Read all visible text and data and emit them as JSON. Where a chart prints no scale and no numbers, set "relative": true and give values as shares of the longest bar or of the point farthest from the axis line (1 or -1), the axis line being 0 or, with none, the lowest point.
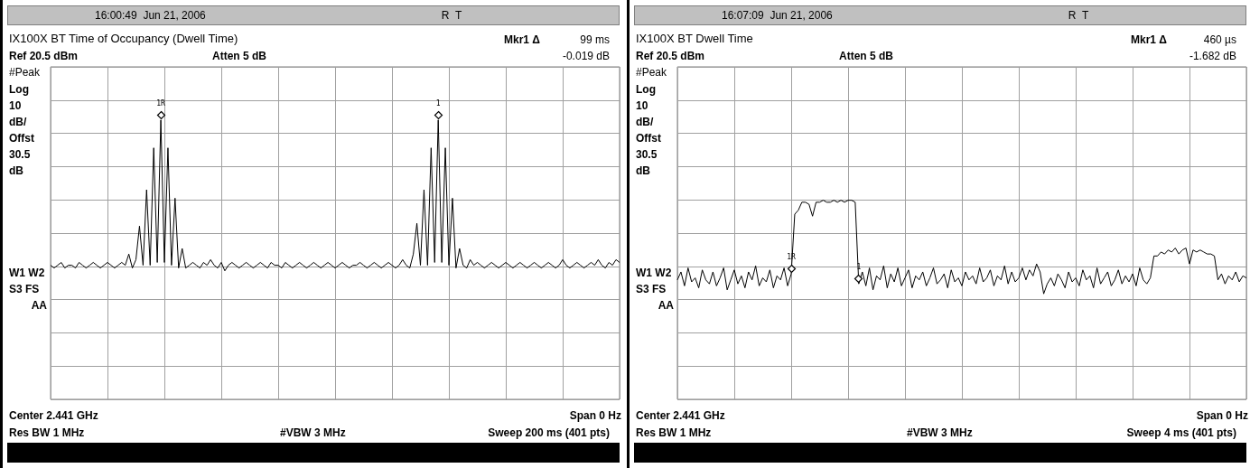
{
  "chart_data": [
    {
      "type": "line",
      "relative": true,
      "grid": true,
      "title": "IX100X BT Time of Occupancy (Dwell Time)",
      "annotations": [
        "16:00:49  Jun 21, 2006",
        "R  T",
        "Mkr1 Δ",
        "99 ms",
        "Ref 20.5 dBm",
        "Atten 5 dB",
        "-0.019 dB",
        "#Peak",
        "Log",
        "10",
        "dB/",
        "Offst",
        "30.5",
        "dB",
        "W1 W2",
        "S3 FS",
        "AA",
        "Center 2.441 GHz",
        "Span 0 Hz",
        "Res BW 1 MHz",
        "#VBW 3 MHz",
        "Sweep 200 ms (401 pts)",
        {
          "text": "1R",
          "y": 1
        },
        {
          "text": "1",
          "y": 1
        }
      ],
      "categories": [
        null,
        null,
        null,
        null,
        null,
        null,
        null,
        null,
        null,
        null,
        null,
        null,
        null,
        null,
        null,
        null,
        null,
        null,
        null,
        null,
        null,
        null,
        null,
        null,
        null,
        null,
        null,
        null,
        null,
        null,
        null,
        null,
        null,
        null,
        null,
        null,
        null,
        null,
        null,
        null,
        null,
        null,
        null,
        null,
        null,
        null,
        null,
        null,
        null,
        null,
        null,
        null,
        null,
        null,
        null,
        null,
        null,
        null,
        null,
        null,
        null,
        null,
        null,
        null,
        null,
        null,
        null,
        null,
        null,
        null,
        null,
        null,
        null,
        null,
        null,
        null,
        null,
        null,
        null,
        null,
        null,
        null,
        null,
        null,
        null,
        null,
        null,
        null,
        null,
        null,
        null,
        null,
        null,
        null,
        null,
        null,
        null,
        null,
        null,
        null,
        null,
        null,
        null,
        null,
        null,
        null,
        null,
        null,
        null,
        null,
        null,
        null,
        null,
        null,
        null,
        null,
        null,
        null,
        null,
        null,
        null,
        null,
        null,
        null,
        null,
        null,
        null,
        null,
        null,
        null,
        null,
        null,
        null,
        null,
        null,
        null,
        null,
        null,
        null,
        null,
        null,
        null,
        null,
        null,
        null,
        null,
        null,
        null,
        null,
        null,
        null,
        null,
        null,
        null,
        null,
        null,
        null,
        null,
        null,
        null,
        null
      ],
      "series": [
        {
          "color": "#000000",
          "values": [
            0.48,
            0.47,
            0.48,
            0.49,
            0.47,
            0.48,
            0.48,
            0.47,
            0.49,
            0.48,
            0.47,
            0.48,
            0.49,
            0.48,
            0.47,
            0.48,
            0.49,
            0.48,
            0.47,
            0.48,
            0.49,
            0.48,
            0.52,
            0.47,
            0.5,
            0.62,
            0.48,
            0.75,
            0.48,
            0.9,
            0.49,
            1,
            0.49,
            0.9,
            0.48,
            0.72,
            0.47,
            0.54,
            0.47,
            0.48,
            0.49,
            0.48,
            0.47,
            0.49,
            0.48,
            0.5,
            0.48,
            0.47,
            0.49,
            0.46,
            0.48,
            0.49,
            0.48,
            0.47,
            0.48,
            0.49,
            0.48,
            0.47,
            0.48,
            0.49,
            0.48,
            0.47,
            0.49,
            0.48,
            0.48,
            0.47,
            0.49,
            0.48,
            0.47,
            0.48,
            0.49,
            0.48,
            0.47,
            0.48,
            0.49,
            0.48,
            0.47,
            0.48,
            0.49,
            0.48,
            0.47,
            0.48,
            0.49,
            0.48,
            0.47,
            0.48,
            0.48,
            0.49,
            0.48,
            0.47,
            0.48,
            0.49,
            0.48,
            0.47,
            0.48,
            0.49,
            0.48,
            0.47,
            0.48,
            0.5,
            0.48,
            0.47,
            0.52,
            0.63,
            0.48,
            0.75,
            0.48,
            0.9,
            0.49,
            1,
            0.49,
            0.9,
            0.48,
            0.72,
            0.47,
            0.54,
            0.48,
            0.47,
            0.5,
            0.48,
            0.49,
            0.48,
            0.47,
            0.48,
            0.49,
            0.48,
            0.47,
            0.48,
            0.49,
            0.48,
            0.47,
            0.48,
            0.49,
            0.48,
            0.47,
            0.48,
            0.49,
            0.48,
            0.47,
            0.48,
            0.49,
            0.48,
            0.47,
            0.48,
            0.5,
            0.48,
            0.47,
            0.48,
            0.49,
            0.48,
            0.47,
            0.48,
            0.49,
            0.48,
            0.5,
            0.48,
            0.47,
            0.49,
            0.48,
            0.5,
            0.49
          ]
        }
      ]
    },
    {
      "type": "line",
      "relative": true,
      "grid": true,
      "title": "IX100X BT Dwell Time",
      "annotations": [
        "16:07:09  Jun 21, 2006",
        "R  T",
        "Mkr1 Δ",
        "460 µs",
        "Ref 20.5 dBm",
        "Atten 5 dB",
        "-1.682 dB",
        "#Peak",
        "Log",
        "10",
        "dB/",
        "Offst",
        "30.5",
        "dB",
        "W1 W2",
        "S3 FS",
        "AA",
        "Center 2.441 GHz",
        "Span 0 Hz",
        "Res BW 1 MHz",
        "#VBW 3 MHz",
        "Sweep 4 ms (401 pts)",
        {
          "text": "1R",
          "y": 0.63
        },
        {
          "text": "1",
          "y": 0.58
        }
      ],
      "categories": [
        null,
        null,
        null,
        null,
        null,
        null,
        null,
        null,
        null,
        null,
        null,
        null,
        null,
        null,
        null,
        null,
        null,
        null,
        null,
        null,
        null,
        null,
        null,
        null,
        null,
        null,
        null,
        null,
        null,
        null,
        null,
        null,
        null,
        null,
        null,
        null,
        null,
        null,
        null,
        null,
        null,
        null,
        null,
        null,
        null,
        null,
        null,
        null,
        null,
        null,
        null,
        null,
        null,
        null,
        null,
        null,
        null,
        null,
        null,
        null,
        null,
        null,
        null,
        null,
        null,
        null,
        null,
        null,
        null,
        null,
        null,
        null,
        null,
        null,
        null,
        null,
        null,
        null,
        null,
        null,
        null,
        null,
        null,
        null,
        null,
        null,
        null,
        null,
        null,
        null,
        null,
        null,
        null,
        null,
        null,
        null,
        null,
        null,
        null,
        null,
        null,
        null,
        null,
        null,
        null,
        null,
        null,
        null,
        null,
        null,
        null,
        null,
        null,
        null,
        null,
        null,
        null,
        null,
        null,
        null,
        null,
        null,
        null,
        null,
        null,
        null,
        null,
        null,
        null,
        null,
        null,
        null,
        null,
        null,
        null,
        null,
        null,
        null,
        null,
        null,
        null,
        null,
        null,
        null,
        null,
        null,
        null,
        null,
        null,
        null,
        null,
        null,
        null,
        null,
        null,
        null,
        null,
        null,
        null,
        null,
        null
      ],
      "series": [
        {
          "color": "#000000",
          "values": [
            0.6,
            0.64,
            0.57,
            0.66,
            0.59,
            0.61,
            0.56,
            0.65,
            0.6,
            0.58,
            0.64,
            0.57,
            0.61,
            0.66,
            0.55,
            0.6,
            0.65,
            0.58,
            0.62,
            0.56,
            0.64,
            0.6,
            0.67,
            0.57,
            0.61,
            0.59,
            0.65,
            0.56,
            0.62,
            0.6,
            0.66,
            0.57,
            0.63,
            0.93,
            0.95,
            0.99,
            0.99,
            0.98,
            0.92,
            0.99,
            0.99,
            1,
            0.99,
            0.99,
            1,
            0.99,
            1,
            0.99,
            1,
            1,
            0.99,
            0.58,
            0.64,
            0.57,
            0.66,
            0.55,
            0.62,
            0.6,
            0.67,
            0.56,
            0.63,
            0.59,
            0.66,
            0.57,
            0.61,
            0.65,
            0.56,
            0.62,
            0.6,
            0.64,
            0.57,
            0.61,
            0.66,
            0.58,
            0.6,
            0.63,
            0.56,
            0.65,
            0.59,
            0.61,
            0.57,
            0.64,
            0.6,
            0.62,
            0.58,
            0.66,
            0.59,
            0.61,
            0.65,
            0.57,
            0.62,
            0.6,
            0.67,
            0.58,
            0.64,
            0.59,
            0.61,
            0.66,
            0.6,
            0.65,
            0.62,
            0.68,
            0.64,
            0.53,
            0.58,
            0.61,
            0.57,
            0.63,
            0.6,
            0.56,
            0.64,
            0.59,
            0.61,
            0.57,
            0.65,
            0.6,
            0.62,
            0.56,
            0.66,
            0.58,
            0.61,
            0.64,
            0.57,
            0.6,
            0.65,
            0.58,
            0.62,
            0.59,
            0.63,
            0.57,
            0.66,
            0.6,
            0.58,
            0.61,
            0.72,
            0.72,
            0.74,
            0.73,
            0.75,
            0.74,
            0.76,
            0.73,
            0.75,
            0.76,
            0.68,
            0.75,
            0.74,
            0.75,
            0.74,
            0.73,
            0.73,
            0.72,
            0.6,
            0.63,
            0.58,
            0.62,
            0.6,
            0.64,
            0.59,
            0.62,
            0.61
          ]
        }
      ]
    }
  ]
}
